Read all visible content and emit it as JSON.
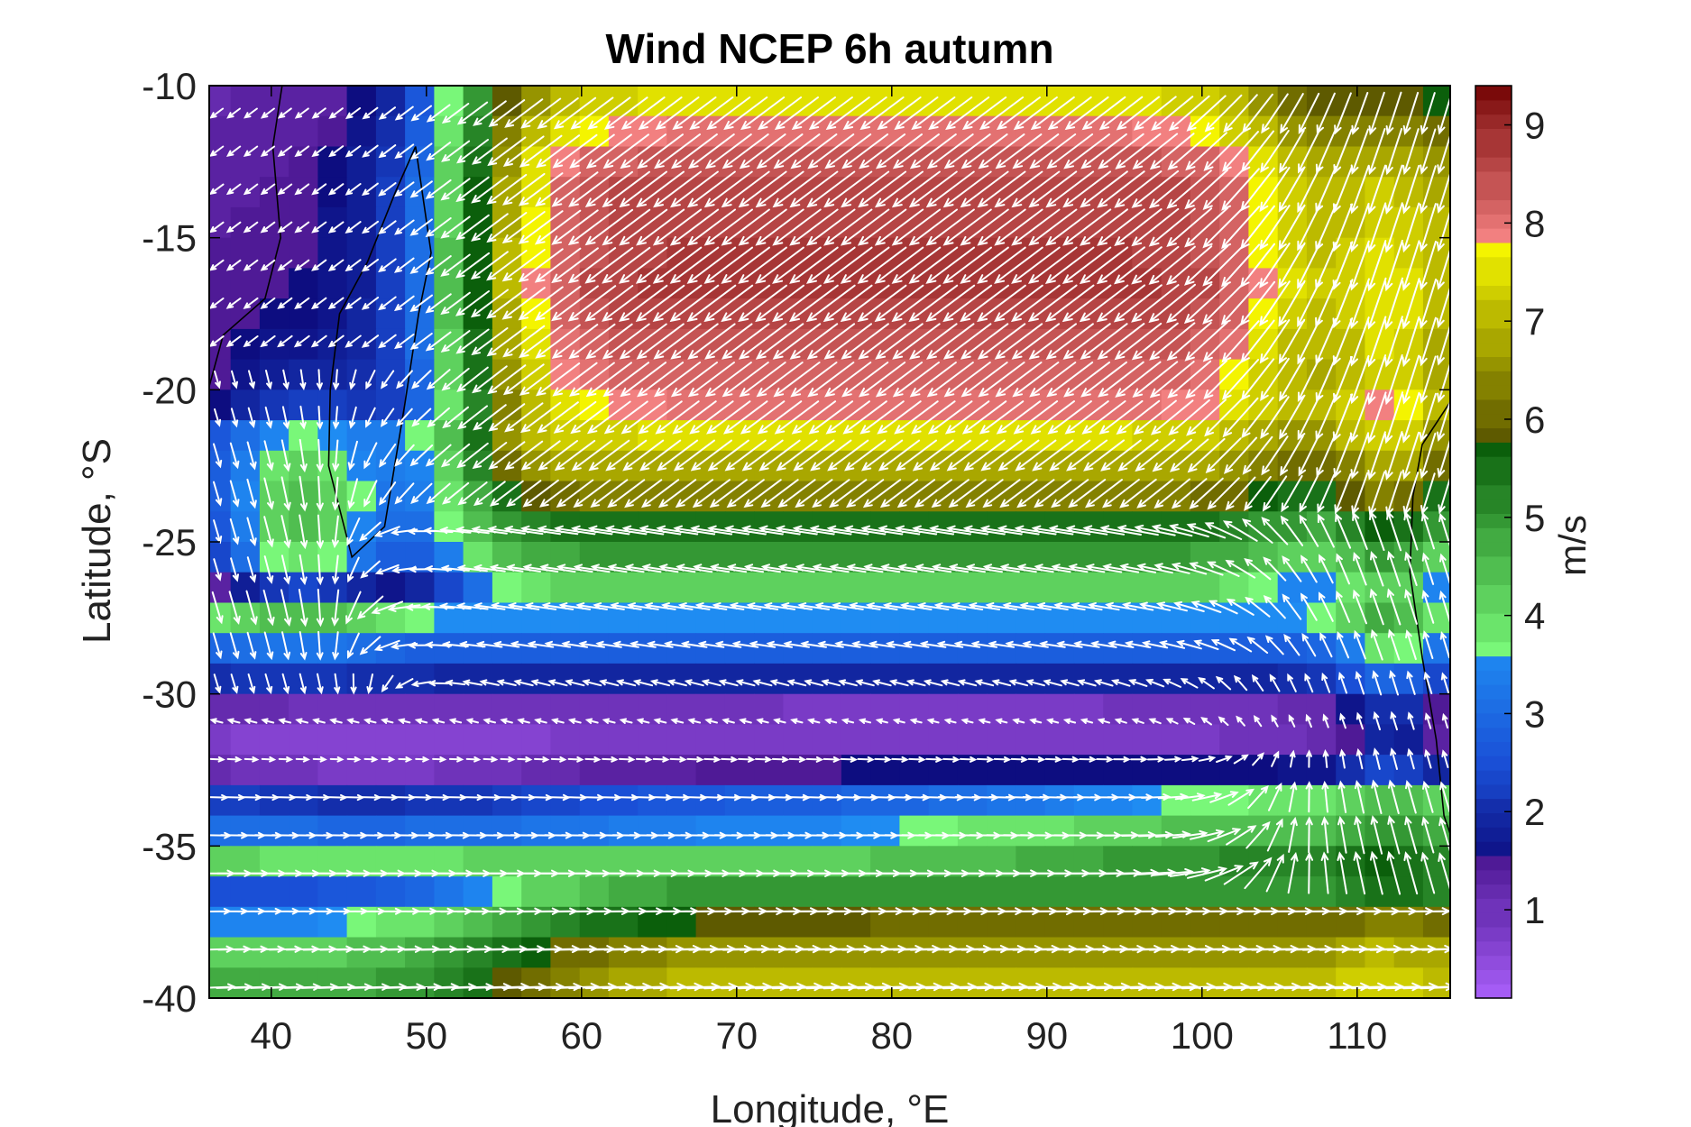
{
  "chart_data": {
    "type": "heatmap",
    "title": "Wind NCEP 6h autumn",
    "xlabel": "Longitude, °E",
    "ylabel": "Latitude, °S",
    "xlim": [
      36,
      116
    ],
    "ylim": [
      -40,
      -10
    ],
    "xticks": [
      40,
      50,
      60,
      70,
      80,
      90,
      100,
      110
    ],
    "yticks": [
      -10,
      -15,
      -20,
      -25,
      -30,
      -35,
      -40
    ],
    "colorbar": {
      "label": "m/s",
      "ticks": [
        1,
        2,
        3,
        4,
        5,
        6,
        7,
        8,
        9
      ],
      "range": [
        0.1,
        9.4
      ],
      "bands": [
        {
          "min": 0.1,
          "max": 1.5,
          "from": "#a55cf5",
          "to": "#4f1a96"
        },
        {
          "min": 1.5,
          "max": 2.5,
          "from": "#0d0d80",
          "to": "#1a4fd6"
        },
        {
          "min": 2.5,
          "max": 3.6,
          "from": "#1a4fd6",
          "to": "#1f8cf2"
        },
        {
          "min": 3.6,
          "max": 5.8,
          "from": "#79f779",
          "to": "#0b5f0b"
        },
        {
          "min": 5.8,
          "max": 7.8,
          "from": "#5e5a00",
          "to": "#f4f400"
        },
        {
          "min": 7.8,
          "max": 9.4,
          "from": "#f28080",
          "to": "#7a0a0a"
        }
      ]
    },
    "grid": false,
    "field": {
      "description_of_values": "approximate wind speed (m/s) on a 1.875° grid; arrows show wind direction",
      "speed_regions": [
        {
          "lon": [
            55,
            103
          ],
          "lat": [
            -21,
            -11
          ],
          "speed": 8.6
        },
        {
          "lon": [
            50,
            108
          ],
          "lat": [
            -24,
            -10.5
          ],
          "speed": 7.3
        },
        {
          "lon": [
            104,
            114
          ],
          "lat": [
            -35,
            -10.5
          ],
          "speed": 6.3
        },
        {
          "lon": [
            58,
            112
          ],
          "lat": [
            -40,
            -37
          ],
          "speed": 6.9
        },
        {
          "lon": [
            44,
            116
          ],
          "lat": [
            -37,
            -34
          ],
          "speed": 4.8
        },
        {
          "lon": [
            62,
            104
          ],
          "lat": [
            -32,
            -30
          ],
          "speed": 0.6
        },
        {
          "lon": [
            36,
            66
          ],
          "lat": [
            -35,
            -31
          ],
          "speed": 1.2
        },
        {
          "lon": [
            38,
            50
          ],
          "lat": [
            -26,
            -11
          ],
          "speed": 1.3
        }
      ]
    }
  },
  "colors": {
    "frame": "#000000",
    "arrows": "#ffffff",
    "coast": "#000000"
  }
}
